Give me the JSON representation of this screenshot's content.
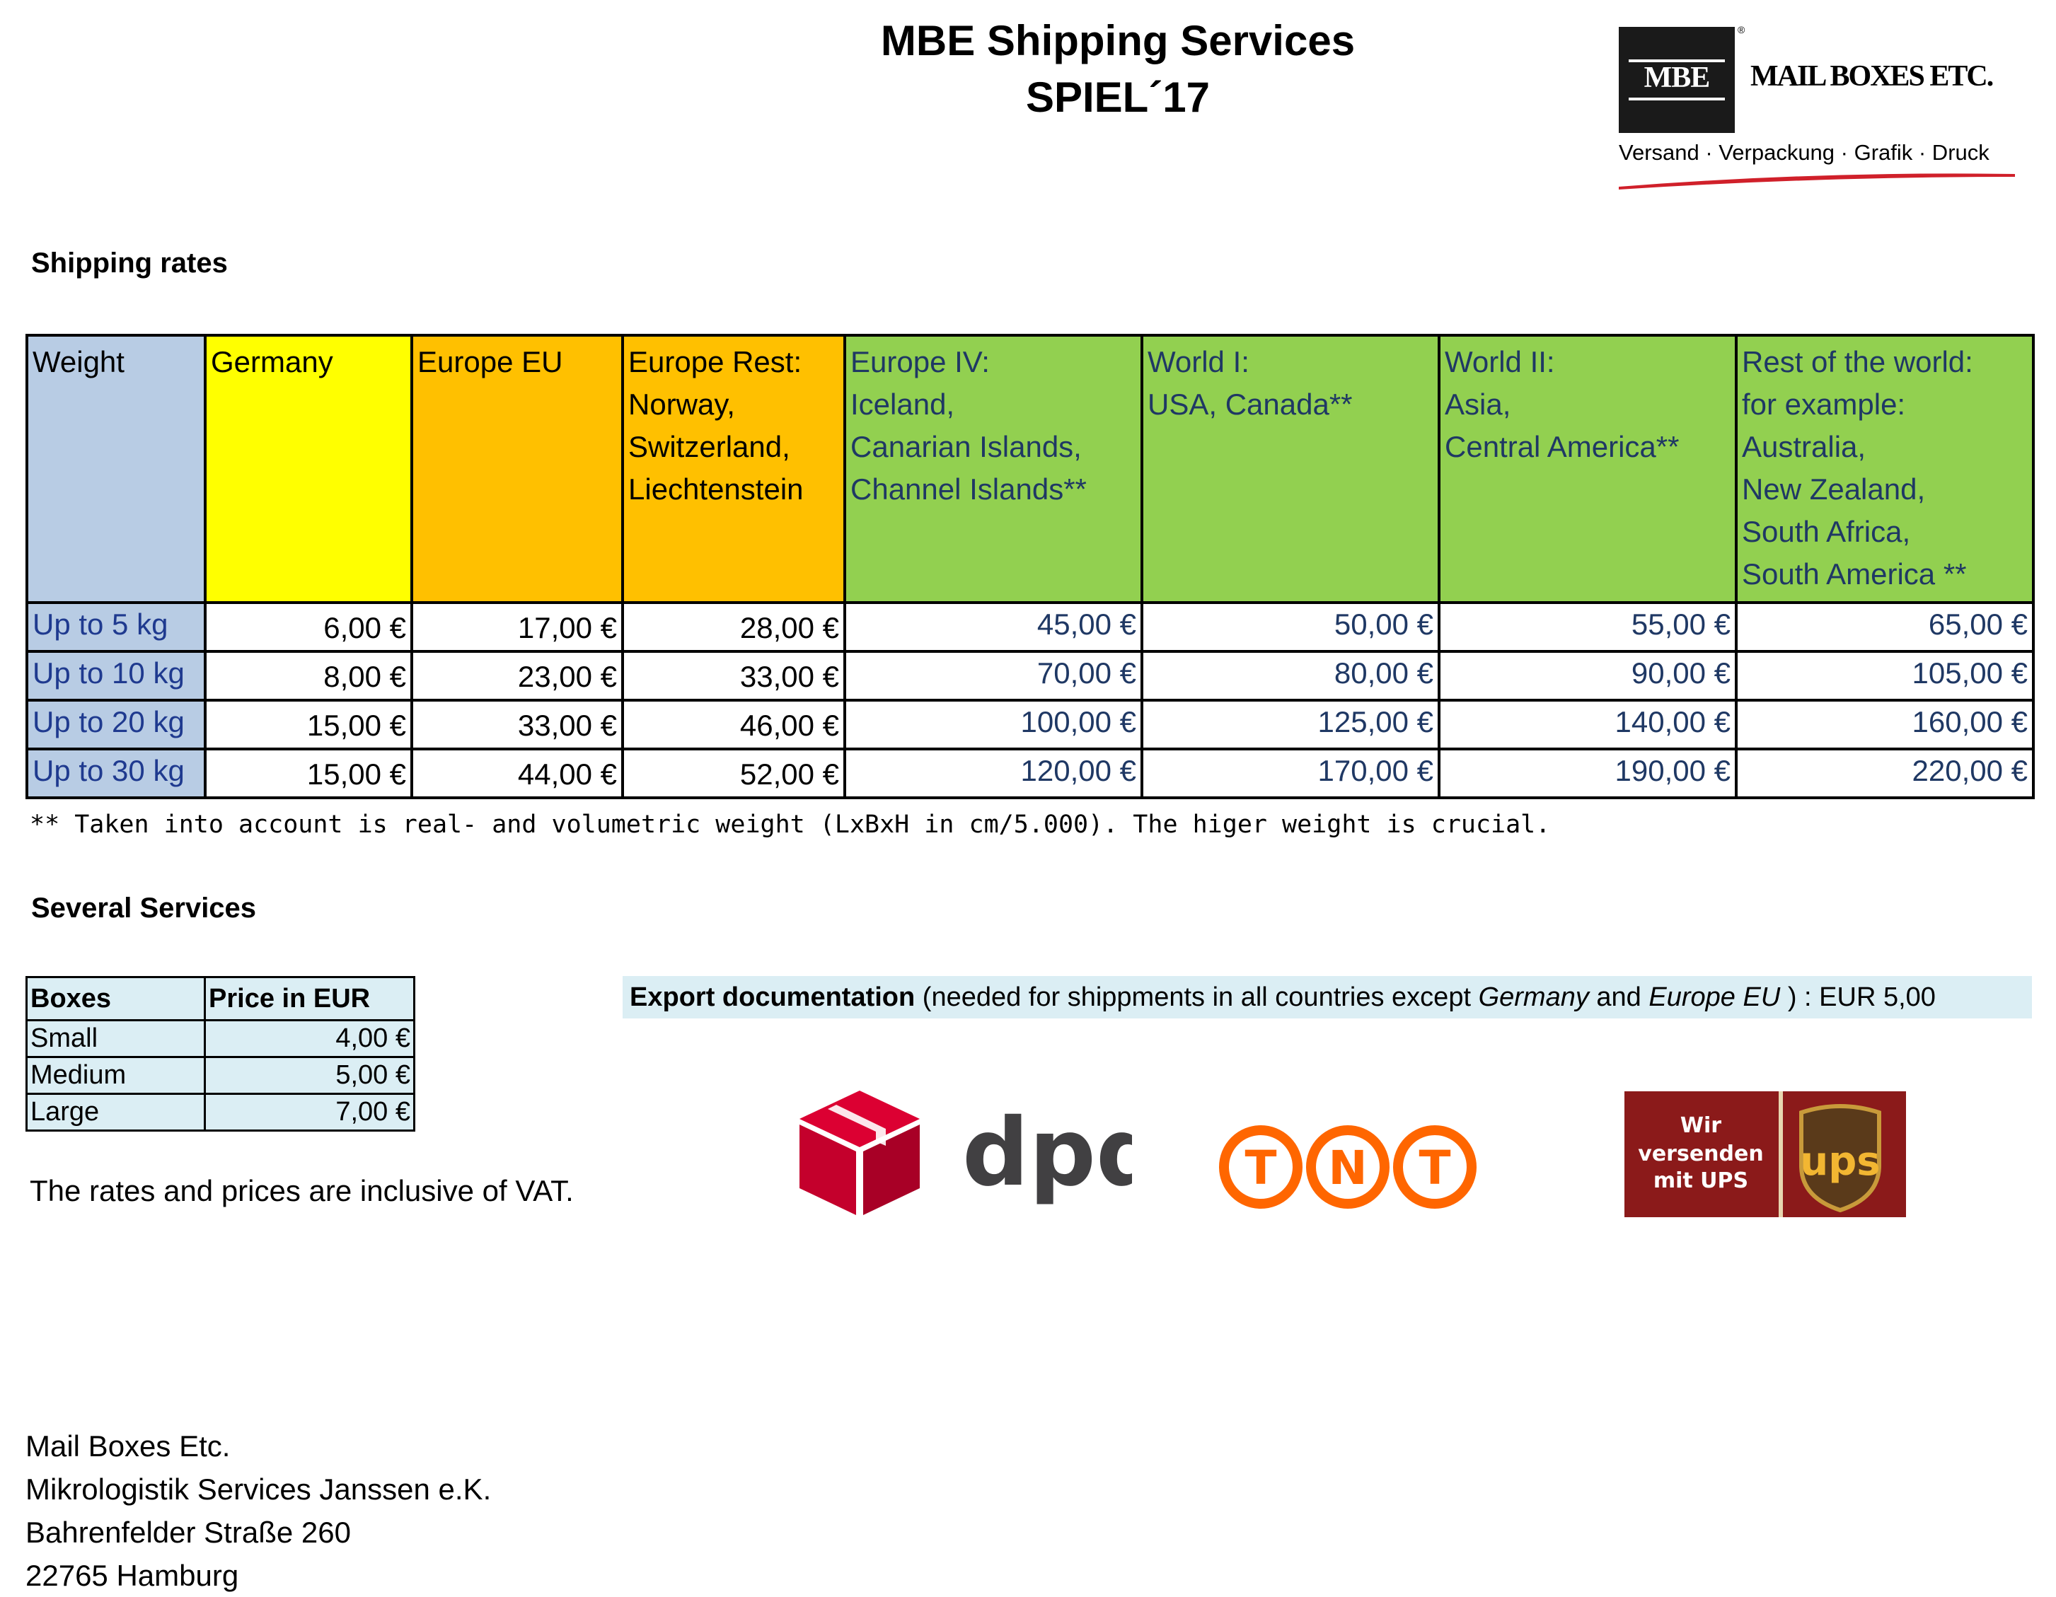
{
  "header": {
    "title_line1": "MBE Shipping Services",
    "title_line2": "SPIEL´17"
  },
  "mbe_logo": {
    "box_text": "MBE",
    "name": "MAIL BOXES ETC.",
    "registered_mark": "®",
    "tagline": "Versand · Verpackung · Grafik · Druck",
    "swoosh_color": "#d0202a"
  },
  "shipping_rates": {
    "heading": "Shipping rates",
    "columns": [
      {
        "label": "Weight",
        "color": "#b8cce4"
      },
      {
        "label": "Germany",
        "color": "#ffff00"
      },
      {
        "label": "Europe EU",
        "color": "#ffc000"
      },
      {
        "label": "Europe Rest:\nNorway,\nSwitzerland,\nLiechtenstein",
        "color": "#ffc000"
      },
      {
        "label": "Europe IV:\nIceland,\nCanarian Islands,\nChannel Islands**",
        "color": "#92d050"
      },
      {
        "label": "World I:\nUSA, Canada**",
        "color": "#92d050"
      },
      {
        "label": "World II:\nAsia,\nCentral America**",
        "color": "#92d050"
      },
      {
        "label": "Rest of the world:\nfor example:\nAustralia,\nNew Zealand,\nSouth Africa,\nSouth America **",
        "color": "#92d050"
      }
    ],
    "rows": [
      {
        "weight": "Up to 5 kg",
        "prices": [
          "6,00 €",
          "17,00 €",
          "28,00 €",
          "45,00 €",
          "50,00 €",
          "55,00 €",
          "65,00 €"
        ]
      },
      {
        "weight": "Up to 10 kg",
        "prices": [
          "8,00 €",
          "23,00 €",
          "33,00 €",
          "70,00 €",
          "80,00 €",
          "90,00 €",
          "105,00 €"
        ]
      },
      {
        "weight": "Up to  20 kg",
        "prices": [
          "15,00 €",
          "33,00 €",
          "46,00 €",
          "100,00 €",
          "125,00 €",
          "140,00 €",
          "160,00 €"
        ]
      },
      {
        "weight": "Up to 30 kg",
        "prices": [
          "15,00 €",
          "44,00 €",
          "52,00 €",
          "120,00 €",
          "170,00 €",
          "190,00 €",
          "220,00 €"
        ]
      }
    ],
    "footnote": "** Taken into account is real- and volumetric weight (LxBxH in cm/5.000). The higer weight is crucial."
  },
  "services": {
    "heading": "Several Services",
    "boxes_table": {
      "header": [
        "Boxes",
        "Price in EUR"
      ],
      "rows": [
        {
          "name": "Small",
          "price": "4,00 €"
        },
        {
          "name": "Medium",
          "price": "5,00 €"
        },
        {
          "name": "Large",
          "price": "7,00 €"
        }
      ]
    },
    "vat_note": "The rates and prices are inclusive of VAT.",
    "export": {
      "bold": "Export documentation",
      "text1": " (needed for shippments in all countries except ",
      "italic1": "Germany",
      "text2": "  and ",
      "italic2": "Europe EU",
      "text3": " ) : EUR 5,00"
    }
  },
  "carriers": {
    "dpd": {
      "text": "dpd",
      "color": "#dc0032"
    },
    "tnt": {
      "letters": [
        "T",
        "N",
        "T"
      ],
      "color": "#ff6600"
    },
    "ups": {
      "left_text": [
        "Wir",
        "versenden",
        "mit UPS"
      ],
      "logo_text": "ups",
      "color": "#8b1a1a"
    }
  },
  "address": [
    "Mail Boxes Etc.",
    "Mikrologistik Services Janssen e.K.",
    "Bahrenfelder Straße 260",
    "22765 Hamburg"
  ]
}
